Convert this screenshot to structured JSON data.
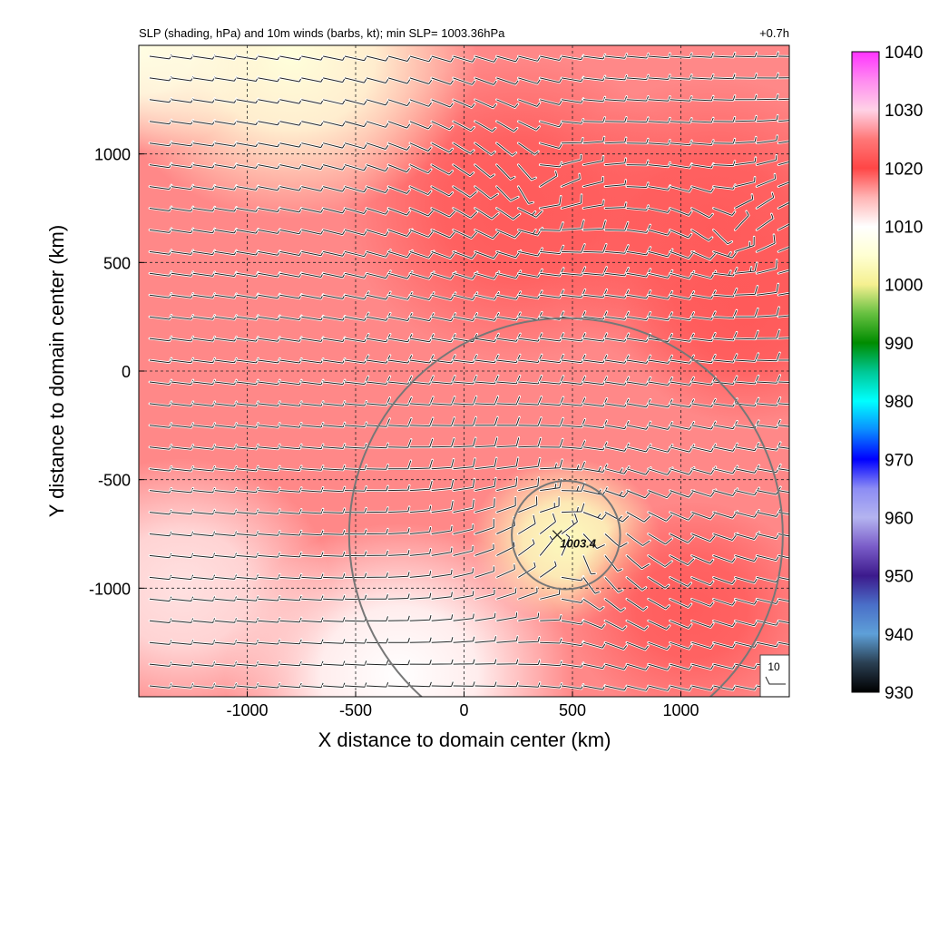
{
  "title_left": "SLP (shading, hPa) and 10m winds (barbs, kt); min SLP= 1003.36hPa",
  "title_right": "+0.7h",
  "chart_data": {
    "type": "heatmap",
    "xlabel": "X distance to domain center (km)",
    "ylabel": "Y distance to domain center (km)",
    "xlim": [
      -1500,
      1500
    ],
    "ylim": [
      -1500,
      1500
    ],
    "x_ticks": [
      -1000,
      -500,
      0,
      500,
      1000
    ],
    "y_ticks": [
      1000,
      500,
      0,
      -500,
      -1000
    ],
    "x_tick_labels": [
      "-1000",
      "-500",
      "0",
      "500",
      "1000"
    ],
    "y_tick_labels": [
      "1000",
      "500",
      "0",
      "-500",
      "-1000"
    ],
    "grid": true,
    "min_slp_marker": {
      "x": 430,
      "y": -755,
      "label": "1003.4"
    },
    "range_rings_km": [
      250,
      1000
    ],
    "ring_center": {
      "x": 470,
      "y": -755
    },
    "barb_reference": {
      "label": "10",
      "speed_kt": 10
    },
    "pressure_centers": [
      {
        "x": 250,
        "y": 750,
        "value": 1022,
        "radius": 700
      },
      {
        "x": 1150,
        "y": 650,
        "value": 1022,
        "radius": 700
      },
      {
        "x": 1300,
        "y": 250,
        "value": 1022,
        "radius": 500
      },
      {
        "x": -800,
        "y": 1450,
        "value": 1006,
        "radius": 750
      },
      {
        "x": -1500,
        "y": 1500,
        "value": 1007,
        "radius": 500
      },
      {
        "x": 470,
        "y": -780,
        "value": 1003.4,
        "radius": 380
      },
      {
        "x": -300,
        "y": -1400,
        "value": 1010,
        "radius": 700
      },
      {
        "x": -1300,
        "y": -1000,
        "value": 1012,
        "radius": 600
      },
      {
        "x": 1050,
        "y": -1100,
        "value": 1019,
        "radius": 500
      }
    ],
    "background_slp": 1017,
    "colorbar": {
      "levels": [
        "1040",
        "1030",
        "1020",
        "1010",
        "1000",
        "990",
        "980",
        "970",
        "960",
        "950",
        "940",
        "930"
      ],
      "min": 930,
      "max": 1040,
      "stops": [
        {
          "value": 930,
          "color": "#000000"
        },
        {
          "value": 935,
          "color": "#2a3f52"
        },
        {
          "value": 940,
          "color": "#5ea0d8"
        },
        {
          "value": 945,
          "color": "#4a6fc8"
        },
        {
          "value": 950,
          "color": "#3c1a8c"
        },
        {
          "value": 955,
          "color": "#7a5cc8"
        },
        {
          "value": 960,
          "color": "#b4b4f0"
        },
        {
          "value": 965,
          "color": "#8c8cf4"
        },
        {
          "value": 970,
          "color": "#0000ff"
        },
        {
          "value": 975,
          "color": "#0a8cff"
        },
        {
          "value": 980,
          "color": "#00ffff"
        },
        {
          "value": 985,
          "color": "#00c896"
        },
        {
          "value": 990,
          "color": "#008c00"
        },
        {
          "value": 995,
          "color": "#66c040"
        },
        {
          "value": 1000,
          "color": "#f5f090"
        },
        {
          "value": 1005,
          "color": "#ffffd2"
        },
        {
          "value": 1010,
          "color": "#ffffff"
        },
        {
          "value": 1015,
          "color": "#ffb4b4"
        },
        {
          "value": 1020,
          "color": "#ff4646"
        },
        {
          "value": 1025,
          "color": "#ff7878"
        },
        {
          "value": 1030,
          "color": "#ffd2e6"
        },
        {
          "value": 1035,
          "color": "#ff8cf0"
        },
        {
          "value": 1040,
          "color": "#ff32ff"
        }
      ]
    }
  }
}
